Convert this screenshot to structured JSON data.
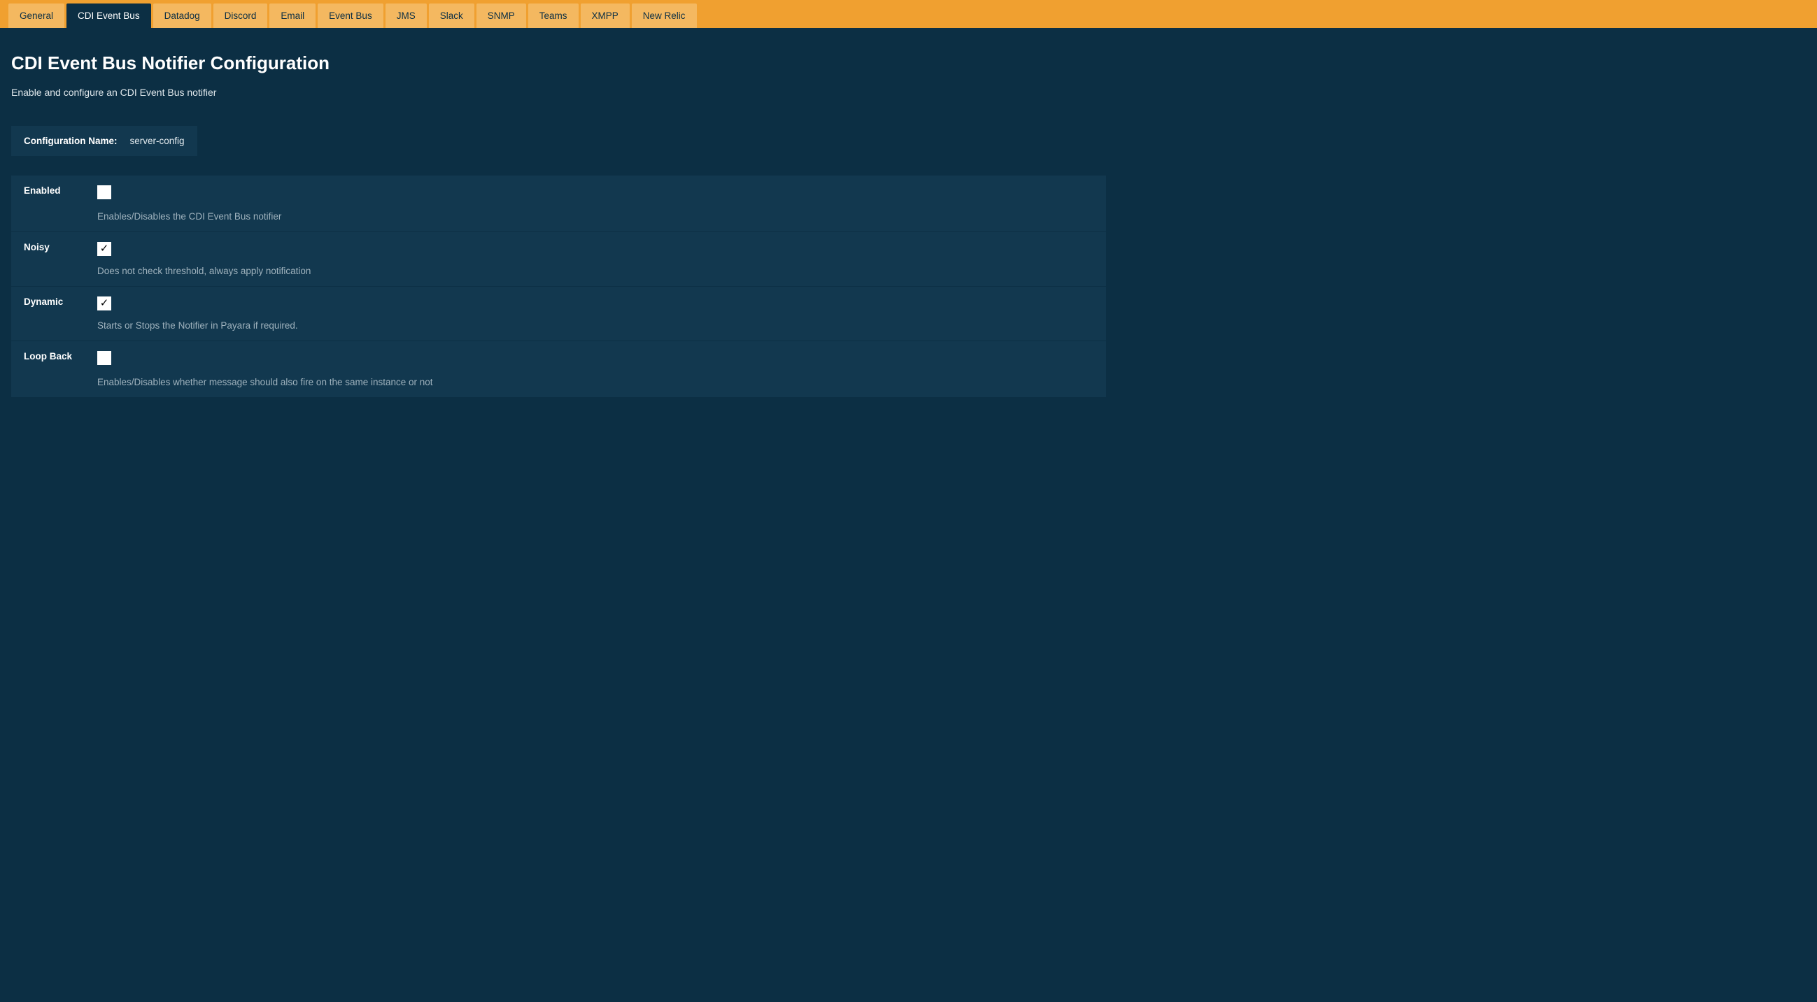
{
  "colors": {
    "tab_bar_bg": "#f0a030",
    "tab_bg": "#f4b860",
    "tab_text": "#0c2f44",
    "tab_active_bg": "#0c2f44",
    "tab_active_text": "#ffffff",
    "page_bg": "#0c2f44",
    "panel_bg": "#12384f",
    "text_primary": "#ffffff",
    "text_secondary": "#e0e8ec",
    "text_muted": "#9fb2bd",
    "checkbox_bg": "#ffffff"
  },
  "tabs": [
    {
      "label": "General",
      "active": false
    },
    {
      "label": "CDI Event Bus",
      "active": true
    },
    {
      "label": "Datadog",
      "active": false
    },
    {
      "label": "Discord",
      "active": false
    },
    {
      "label": "Email",
      "active": false
    },
    {
      "label": "Event Bus",
      "active": false
    },
    {
      "label": "JMS",
      "active": false
    },
    {
      "label": "Slack",
      "active": false
    },
    {
      "label": "SNMP",
      "active": false
    },
    {
      "label": "Teams",
      "active": false
    },
    {
      "label": "XMPP",
      "active": false
    },
    {
      "label": "New Relic",
      "active": false
    }
  ],
  "page": {
    "title": "CDI Event Bus Notifier Configuration",
    "subtitle": "Enable and configure an CDI Event Bus notifier"
  },
  "config_name": {
    "label": "Configuration Name:",
    "value": "server-config"
  },
  "settings": [
    {
      "label": "Enabled",
      "checked": false,
      "description": "Enables/Disables the CDI Event Bus notifier"
    },
    {
      "label": "Noisy",
      "checked": true,
      "description": "Does not check threshold, always apply notification"
    },
    {
      "label": "Dynamic",
      "checked": true,
      "description": "Starts or Stops the Notifier in Payara if required."
    },
    {
      "label": "Loop Back",
      "checked": false,
      "description": "Enables/Disables whether message should also fire on the same instance or not"
    }
  ]
}
